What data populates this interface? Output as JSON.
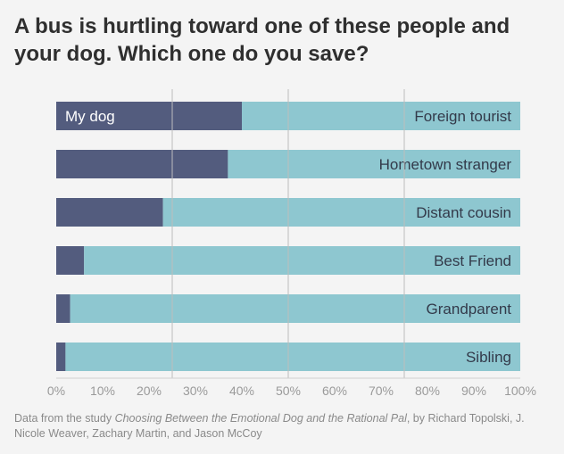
{
  "title": "A bus is hurtling toward one of these people and your dog. Which one do you save?",
  "source": {
    "prefix": "Data from the study ",
    "study_title": "Choosing Between the Emotional Dog and the Rational Pal",
    "suffix": ", by Richard Topolski, J. Nicole Weaver, Zachary Martin, and Jason McCoy"
  },
  "colors": {
    "dog": "#535c7e",
    "person": "#8ec7d0",
    "grid": "#bdbdbd",
    "tick_text": "#9a9a9a",
    "label_dark": "#ffffff",
    "label_light": "#333a4a"
  },
  "chart_data": {
    "type": "bar",
    "orientation": "horizontal",
    "stacked": true,
    "title": "A bus is hurtling toward one of these people and your dog. Which one do you save?",
    "categories": [
      "Foreign tourist",
      "Hometown stranger",
      "Distant cousin",
      "Best Friend",
      "Grandparent",
      "Sibling"
    ],
    "series": [
      {
        "name": "My dog",
        "values": [
          40,
          37,
          23,
          6,
          3,
          2
        ]
      },
      {
        "name": "",
        "values": [
          60,
          63,
          77,
          94,
          97,
          98
        ]
      }
    ],
    "bar_annotation": "My dog",
    "xlim": [
      0,
      100
    ],
    "x_ticks": [
      "0%",
      "10%",
      "20%",
      "30%",
      "40%",
      "50%",
      "60%",
      "70%",
      "80%",
      "90%",
      "100%"
    ],
    "gridlines_at": [
      25,
      50,
      75
    ],
    "xlabel": "",
    "ylabel": "",
    "legend": "none"
  }
}
